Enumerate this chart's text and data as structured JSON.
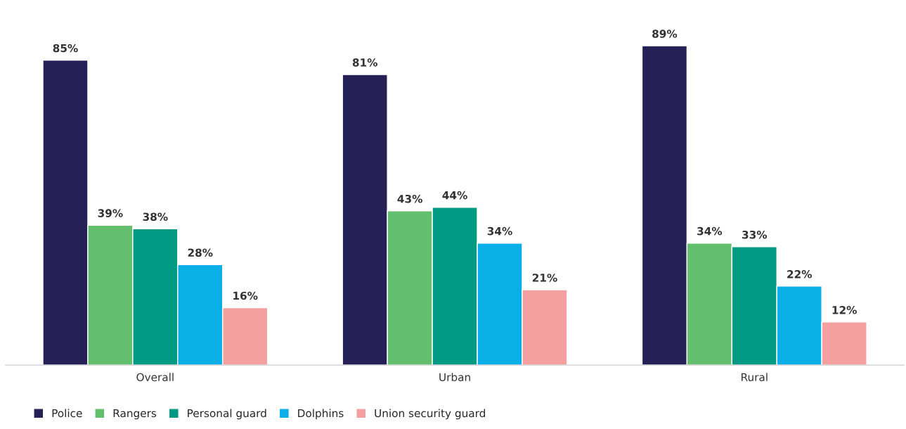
{
  "chart_data": {
    "type": "bar",
    "categories": [
      "Overall",
      "Urban",
      "Rural"
    ],
    "series": [
      {
        "name": "Police",
        "color": "#252157",
        "values": [
          85,
          81,
          89
        ],
        "value_labels": [
          "85%",
          "81%",
          "89%"
        ]
      },
      {
        "name": "Rangers",
        "color": "#63bf6e",
        "values": [
          39,
          43,
          34
        ],
        "value_labels": [
          "39%",
          "43%",
          "34%"
        ]
      },
      {
        "name": "Personal guard",
        "color": "#009a83",
        "values": [
          38,
          44,
          33
        ],
        "value_labels": [
          "38%",
          "44%",
          "33%"
        ]
      },
      {
        "name": "Dolphins",
        "color": "#09afe6",
        "values": [
          28,
          34,
          22
        ],
        "value_labels": [
          "28%",
          "34%",
          "22%"
        ]
      },
      {
        "name": "Union security guard",
        "color": "#f5a0a0",
        "values": [
          16,
          21,
          12
        ],
        "value_labels": [
          "16%",
          "21%",
          "12%"
        ]
      }
    ],
    "legend": "bottom left",
    "grid": false
  }
}
